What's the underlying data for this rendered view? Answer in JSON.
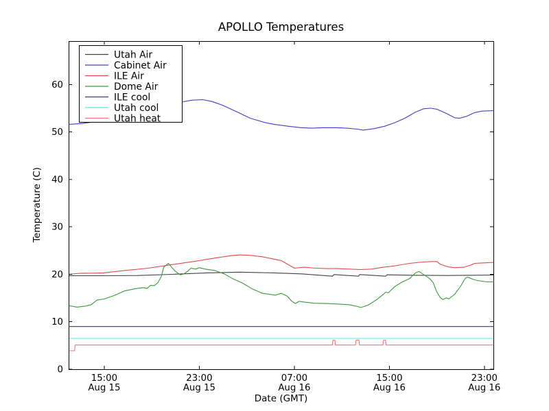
{
  "chart_data": {
    "type": "line",
    "title": "APOLLO Temperatures",
    "xlabel": "Date (GMT)",
    "ylabel": "Temperature (C)",
    "x_unit": "hours since Aug 15 00:00 GMT",
    "xlim": [
      12.0,
      47.76
    ],
    "ylim": [
      0,
      69.15
    ],
    "grid": false,
    "legend_position": "upper left",
    "yticks": [
      0,
      10,
      20,
      30,
      40,
      50,
      60
    ],
    "xticks": [
      {
        "t": 15,
        "time": "15:00",
        "date": "Aug 15"
      },
      {
        "t": 23,
        "time": "23:00",
        "date": "Aug 15"
      },
      {
        "t": 31,
        "time": "07:00",
        "date": "Aug 16"
      },
      {
        "t": 39,
        "time": "15:00",
        "date": "Aug 16"
      },
      {
        "t": 47,
        "time": "23:00",
        "date": "Aug 16"
      }
    ],
    "series": [
      {
        "name": "Utah Air",
        "color": "#404040",
        "points": [
          [
            12,
            19.7
          ],
          [
            14.9,
            19.7
          ],
          [
            17.8,
            19.75
          ],
          [
            20.7,
            20.0
          ],
          [
            23.6,
            20.3
          ],
          [
            26.4,
            20.45
          ],
          [
            29.3,
            20.3
          ],
          [
            31.6,
            20.1
          ],
          [
            34.2,
            19.6
          ],
          [
            34.35,
            19.95
          ],
          [
            36.4,
            19.6
          ],
          [
            36.5,
            19.95
          ],
          [
            38.7,
            19.6
          ],
          [
            38.8,
            19.9
          ],
          [
            40.9,
            19.8
          ],
          [
            43.8,
            19.75
          ],
          [
            46.1,
            19.8
          ],
          [
            47.76,
            19.85
          ]
        ]
      },
      {
        "name": "Cabinet Air",
        "color": "#3d3dcc",
        "points": [
          [
            12,
            51.6
          ],
          [
            13.2,
            51.8
          ],
          [
            14.9,
            52.4
          ],
          [
            16.6,
            53.4
          ],
          [
            18.3,
            54.6
          ],
          [
            20.1,
            55.7
          ],
          [
            21.5,
            56.3
          ],
          [
            22.4,
            56.7
          ],
          [
            23.3,
            56.8
          ],
          [
            24.1,
            56.4
          ],
          [
            25,
            55.6
          ],
          [
            26.2,
            54.2
          ],
          [
            27.3,
            52.9
          ],
          [
            28.5,
            52.0
          ],
          [
            29.3,
            51.6
          ],
          [
            30.5,
            51.2
          ],
          [
            31.6,
            50.9
          ],
          [
            32.5,
            50.8
          ],
          [
            33.4,
            50.9
          ],
          [
            34.5,
            50.9
          ],
          [
            35.4,
            50.8
          ],
          [
            36.3,
            50.6
          ],
          [
            36.8,
            50.4
          ],
          [
            37.7,
            50.7
          ],
          [
            38.6,
            51.2
          ],
          [
            39.4,
            51.9
          ],
          [
            40.3,
            52.9
          ],
          [
            41.2,
            54.2
          ],
          [
            41.9,
            54.9
          ],
          [
            42.5,
            55.0
          ],
          [
            43,
            54.8
          ],
          [
            43.8,
            53.9
          ],
          [
            44.5,
            53.0
          ],
          [
            44.9,
            52.9
          ],
          [
            45.5,
            53.3
          ],
          [
            46.2,
            54.1
          ],
          [
            46.8,
            54.4
          ],
          [
            47.76,
            54.5
          ]
        ]
      },
      {
        "name": "ILE Air",
        "color": "#e04848",
        "points": [
          [
            12,
            20.0
          ],
          [
            12.9,
            20.2
          ],
          [
            14.9,
            20.3
          ],
          [
            16.7,
            20.8
          ],
          [
            18.7,
            21.3
          ],
          [
            20.6,
            22.0
          ],
          [
            22.5,
            22.7
          ],
          [
            24.5,
            23.5
          ],
          [
            25.6,
            23.9
          ],
          [
            26.4,
            24.1
          ],
          [
            27.3,
            24.0
          ],
          [
            28.3,
            23.7
          ],
          [
            29.9,
            22.9
          ],
          [
            30.8,
            21.6
          ],
          [
            31,
            21.3
          ],
          [
            31.8,
            21.5
          ],
          [
            32.8,
            21.3
          ],
          [
            33.7,
            21.2
          ],
          [
            34.6,
            21.2
          ],
          [
            35.6,
            21.1
          ],
          [
            36.6,
            21.0
          ],
          [
            37.5,
            21.1
          ],
          [
            38.5,
            21.5
          ],
          [
            39.5,
            21.8
          ],
          [
            40.7,
            22.3
          ],
          [
            41.8,
            22.6
          ],
          [
            42.6,
            22.7
          ],
          [
            43,
            22.7
          ],
          [
            43.3,
            22.1
          ],
          [
            43.9,
            21.6
          ],
          [
            44.5,
            21.4
          ],
          [
            45.3,
            21.5
          ],
          [
            45.9,
            22.0
          ],
          [
            46.2,
            22.3
          ],
          [
            46.9,
            22.4
          ],
          [
            47.76,
            22.5
          ]
        ]
      },
      {
        "name": "Dome Air",
        "color": "#3a9a3a",
        "points": [
          [
            12,
            13.4
          ],
          [
            12.7,
            13.1
          ],
          [
            13.4,
            13.3
          ],
          [
            13.9,
            13.6
          ],
          [
            14.4,
            14.6
          ],
          [
            15,
            14.8
          ],
          [
            15.8,
            15.5
          ],
          [
            16.7,
            16.5
          ],
          [
            17.7,
            17.0
          ],
          [
            18.3,
            17.2
          ],
          [
            18.6,
            17.0
          ],
          [
            18.9,
            17.7
          ],
          [
            19.2,
            17.6
          ],
          [
            19.5,
            18.2
          ],
          [
            19.8,
            19.5
          ],
          [
            20,
            21.5
          ],
          [
            20.4,
            22.3
          ],
          [
            20.7,
            21.4
          ],
          [
            21,
            20.6
          ],
          [
            21.4,
            19.9
          ],
          [
            21.7,
            20.1
          ],
          [
            22,
            20.6
          ],
          [
            22.3,
            21.3
          ],
          [
            22.7,
            21.1
          ],
          [
            23,
            21.4
          ],
          [
            23.5,
            21.1
          ],
          [
            24.3,
            20.8
          ],
          [
            25.1,
            20.1
          ],
          [
            25.8,
            19.1
          ],
          [
            26.6,
            18.2
          ],
          [
            27.4,
            17.0
          ],
          [
            28.3,
            16.0
          ],
          [
            28.9,
            15.8
          ],
          [
            29.4,
            15.6
          ],
          [
            29.9,
            16.0
          ],
          [
            30.4,
            15.4
          ],
          [
            30.8,
            14.3
          ],
          [
            31.1,
            13.85
          ],
          [
            31.4,
            14.3
          ],
          [
            32,
            14.1
          ],
          [
            32.7,
            13.9
          ],
          [
            33.7,
            13.85
          ],
          [
            34.6,
            13.75
          ],
          [
            35.6,
            13.6
          ],
          [
            36.2,
            13.3
          ],
          [
            36.6,
            13.0
          ],
          [
            37.2,
            13.5
          ],
          [
            37.9,
            14.6
          ],
          [
            38.5,
            15.8
          ],
          [
            38.7,
            16.25
          ],
          [
            38.9,
            16.1
          ],
          [
            39.5,
            17.5
          ],
          [
            40.1,
            18.4
          ],
          [
            40.7,
            19.1
          ],
          [
            41.2,
            20.3
          ],
          [
            41.5,
            20.6
          ],
          [
            41.8,
            20.1
          ],
          [
            42.4,
            19.1
          ],
          [
            42.7,
            18.2
          ],
          [
            43,
            16.25
          ],
          [
            43.3,
            15.05
          ],
          [
            43.5,
            14.7
          ],
          [
            43.8,
            15.05
          ],
          [
            44,
            14.8
          ],
          [
            44.5,
            15.8
          ],
          [
            45,
            17.5
          ],
          [
            45.4,
            19.2
          ],
          [
            45.6,
            19.4
          ],
          [
            46.1,
            18.9
          ],
          [
            46.4,
            18.7
          ],
          [
            47.2,
            18.4
          ],
          [
            47.76,
            18.4
          ]
        ]
      },
      {
        "name": "ILE cool",
        "color": "#3a3a66",
        "points": [
          [
            12,
            9.0
          ],
          [
            47.76,
            9.0
          ]
        ]
      },
      {
        "name": "Utah cool",
        "color": "#55e8e8",
        "points": [
          [
            12,
            6.5
          ],
          [
            47.76,
            6.5
          ]
        ]
      },
      {
        "name": "Utah heat",
        "color": "#f47676",
        "points": [
          [
            12,
            3.9
          ],
          [
            12.5,
            3.9
          ],
          [
            12.55,
            5.1
          ],
          [
            34.2,
            5.1
          ],
          [
            34.25,
            6.1
          ],
          [
            34.42,
            6.1
          ],
          [
            34.45,
            5.1
          ],
          [
            36.15,
            5.1
          ],
          [
            36.2,
            6.15
          ],
          [
            36.44,
            6.15
          ],
          [
            36.48,
            5.1
          ],
          [
            38.46,
            5.1
          ],
          [
            38.5,
            6.1
          ],
          [
            38.68,
            6.1
          ],
          [
            38.72,
            5.1
          ],
          [
            47.76,
            5.1
          ]
        ]
      }
    ]
  }
}
